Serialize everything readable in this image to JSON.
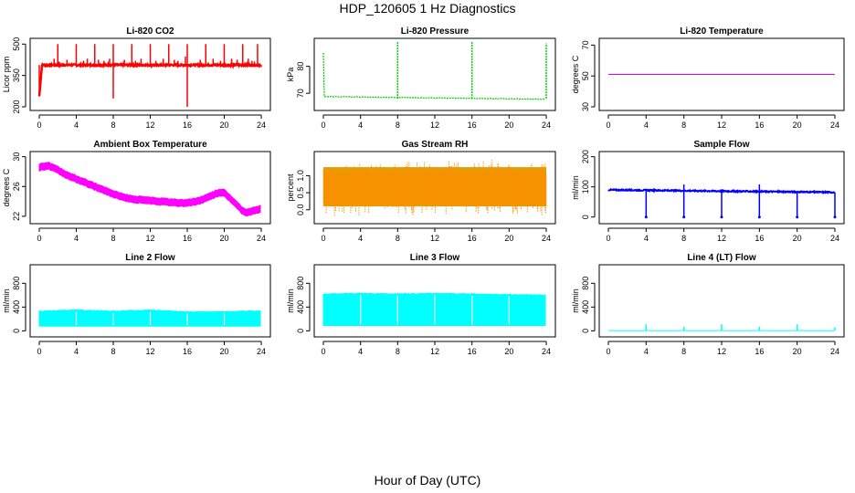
{
  "page": {
    "title": "HDP_120605  1 Hz Diagnostics",
    "x_caption": "Hour of Day (UTC)"
  },
  "chart_data": [
    {
      "id": "co2",
      "type": "line",
      "title": "Li-820 CO2",
      "ylabel": "Licor ppm",
      "xlim": [
        0,
        24
      ],
      "ylim": [
        200,
        510
      ],
      "yticks": [
        200,
        350,
        500
      ],
      "xticks": [
        0,
        4,
        8,
        12,
        16,
        20,
        24
      ],
      "color": "#ff0000",
      "series": [
        {
          "name": "CO2",
          "baseline": 400,
          "noise": 4,
          "start": [
            0,
            250
          ],
          "spikes": [
            [
              1,
              390
            ],
            [
              1.6,
              430
            ],
            [
              2,
              500
            ],
            [
              2.6,
              410
            ],
            [
              3,
              425
            ],
            [
              4,
              500
            ],
            [
              4.8,
              420
            ],
            [
              5.2,
              430
            ],
            [
              6,
              500
            ],
            [
              6.4,
              425
            ],
            [
              7,
              420
            ],
            [
              7.6,
              430
            ],
            [
              8,
              500
            ],
            [
              8,
              240
            ],
            [
              9.2,
              425
            ],
            [
              10,
              500
            ],
            [
              10.4,
              420
            ],
            [
              11,
              430
            ],
            [
              12,
              500
            ],
            [
              12.6,
              420
            ],
            [
              13.4,
              430
            ],
            [
              14,
              500
            ],
            [
              14.6,
              425
            ],
            [
              15,
              420
            ],
            [
              15.8,
              440
            ],
            [
              16,
              500
            ],
            [
              16,
              200
            ],
            [
              17.4,
              425
            ],
            [
              18,
              500
            ],
            [
              18.8,
              430
            ],
            [
              19.6,
              420
            ],
            [
              20,
              500
            ],
            [
              20.8,
              430
            ],
            [
              21.4,
              425
            ],
            [
              22,
              500
            ],
            [
              22.6,
              430
            ],
            [
              23,
              420
            ],
            [
              23.6,
              500
            ],
            [
              24,
              390
            ]
          ]
        }
      ]
    },
    {
      "id": "pressure",
      "type": "line",
      "title": "Li-820 Pressure",
      "ylabel": "kPa",
      "xlim": [
        0,
        24
      ],
      "ylim": [
        65,
        89
      ],
      "yticks": [
        70,
        80
      ],
      "xticks": [
        0,
        4,
        8,
        12,
        16,
        20,
        24
      ],
      "color": "#00cc00",
      "series": [
        {
          "name": "Pressure",
          "start_value": 85,
          "level_start": 68.8,
          "level_end": 67.8,
          "noise": 0.2,
          "spikes": [
            [
              8,
              89
            ],
            [
              16,
              89
            ],
            [
              24,
              88.5
            ]
          ]
        }
      ]
    },
    {
      "id": "temperature",
      "type": "line",
      "title": "Li-820 Temperature",
      "ylabel": "degrees C",
      "xlim": [
        0,
        24
      ],
      "ylim": [
        30,
        72
      ],
      "yticks": [
        30,
        50,
        70
      ],
      "xticks": [
        0,
        4,
        8,
        12,
        16,
        20,
        24
      ],
      "color": "#dd00dd",
      "series": [
        {
          "name": "Temperature",
          "x": [
            0,
            24
          ],
          "y": [
            51,
            51
          ]
        }
      ]
    },
    {
      "id": "ambient",
      "type": "area",
      "title": "Ambient Box Temperature",
      "ylabel": "degrees C",
      "xlim": [
        0,
        24
      ],
      "ylim": [
        21.5,
        30.2
      ],
      "yticks": [
        22,
        26,
        30
      ],
      "xticks": [
        0,
        4,
        8,
        12,
        16,
        20,
        24
      ],
      "color": "#ff00ff",
      "series": [
        {
          "name": "Ambient",
          "x": [
            0,
            1,
            2,
            3,
            4,
            5,
            6,
            7,
            8,
            9,
            10,
            11,
            12,
            13,
            14,
            15,
            16,
            17,
            18,
            19,
            19.5,
            20,
            21,
            22,
            22.5,
            23,
            24
          ],
          "y": [
            28.6,
            28.8,
            28.2,
            27.5,
            27,
            26.5,
            26,
            25.5,
            25,
            24.6,
            24.3,
            24.2,
            24.1,
            24,
            23.9,
            23.8,
            23.8,
            24,
            24.4,
            25,
            25.2,
            25.1,
            24,
            22.7,
            22.5,
            22.7,
            23
          ],
          "band": 0.45
        }
      ]
    },
    {
      "id": "rh",
      "type": "area",
      "title": "Gas Stream RH",
      "ylabel": "percent",
      "xlim": [
        0,
        24
      ],
      "ylim": [
        -0.3,
        1.6
      ],
      "yticks": [
        0,
        0.5,
        1
      ],
      "yticklabels": [
        "0.0",
        "0.5",
        "1.0"
      ],
      "xticks": [
        0,
        4,
        8,
        12,
        16,
        20,
        24
      ],
      "color": "#ff8c00",
      "series": [
        {
          "name": "RH",
          "low": 0.1,
          "high": 1.25,
          "outlier_low": -0.2,
          "outlier_high": 1.5
        }
      ]
    },
    {
      "id": "sample",
      "type": "line",
      "title": "Sample Flow",
      "ylabel": "ml/min",
      "xlim": [
        0,
        24
      ],
      "ylim": [
        -10,
        205
      ],
      "yticks": [
        0,
        100,
        200
      ],
      "xticks": [
        0,
        4,
        8,
        12,
        16,
        20,
        24
      ],
      "color": "#0000ff",
      "series": [
        {
          "name": "Sample",
          "level_start": 90,
          "level_end": 82,
          "noise": 4,
          "drops": [
            4,
            8,
            12,
            16,
            20,
            24
          ],
          "drop_value": 0,
          "peaks": [
            [
              8,
              108
            ],
            [
              16,
              108
            ]
          ]
        }
      ]
    },
    {
      "id": "line2",
      "type": "area",
      "title": "Line 2 Flow",
      "ylabel": "ml/min",
      "xlim": [
        0,
        24
      ],
      "ylim": [
        -40,
        1050
      ],
      "yticks": [
        0,
        400,
        800
      ],
      "xticks": [
        0,
        4,
        8,
        12,
        16,
        20,
        24
      ],
      "color": "#00ffff",
      "series": [
        {
          "name": "Line 2",
          "low": 80,
          "high_x": [
            0,
            4,
            8,
            12,
            16,
            20,
            24
          ],
          "high_y": [
            330,
            350,
            330,
            350,
            320,
            320,
            340
          ],
          "gaps": [
            4,
            8,
            12,
            16,
            20
          ]
        }
      ]
    },
    {
      "id": "line3",
      "type": "area",
      "title": "Line 3 Flow",
      "ylabel": "ml/min",
      "xlim": [
        0,
        24
      ],
      "ylim": [
        -40,
        1050
      ],
      "yticks": [
        0,
        400,
        800
      ],
      "xticks": [
        0,
        4,
        8,
        12,
        16,
        20,
        24
      ],
      "color": "#00ffff",
      "series": [
        {
          "name": "Line 3",
          "low": 90,
          "high_x": [
            0,
            4,
            8,
            12,
            16,
            20,
            24
          ],
          "high_y": [
            620,
            630,
            620,
            630,
            620,
            610,
            600
          ],
          "gaps": [
            4,
            8,
            12,
            16,
            20
          ]
        }
      ]
    },
    {
      "id": "line4",
      "type": "line",
      "title": "Line 4 (LT) Flow",
      "ylabel": "ml/min",
      "xlim": [
        0,
        24
      ],
      "ylim": [
        -40,
        1050
      ],
      "yticks": [
        0,
        400,
        800
      ],
      "xticks": [
        0,
        4,
        8,
        12,
        16,
        20,
        24
      ],
      "color": "#00ffff",
      "series": [
        {
          "name": "Line 4",
          "baseline": 5,
          "spikes": [
            [
              4,
              110
            ],
            [
              8,
              70
            ],
            [
              12,
              110
            ],
            [
              16,
              70
            ],
            [
              20,
              110
            ],
            [
              24,
              60
            ]
          ]
        }
      ]
    }
  ]
}
